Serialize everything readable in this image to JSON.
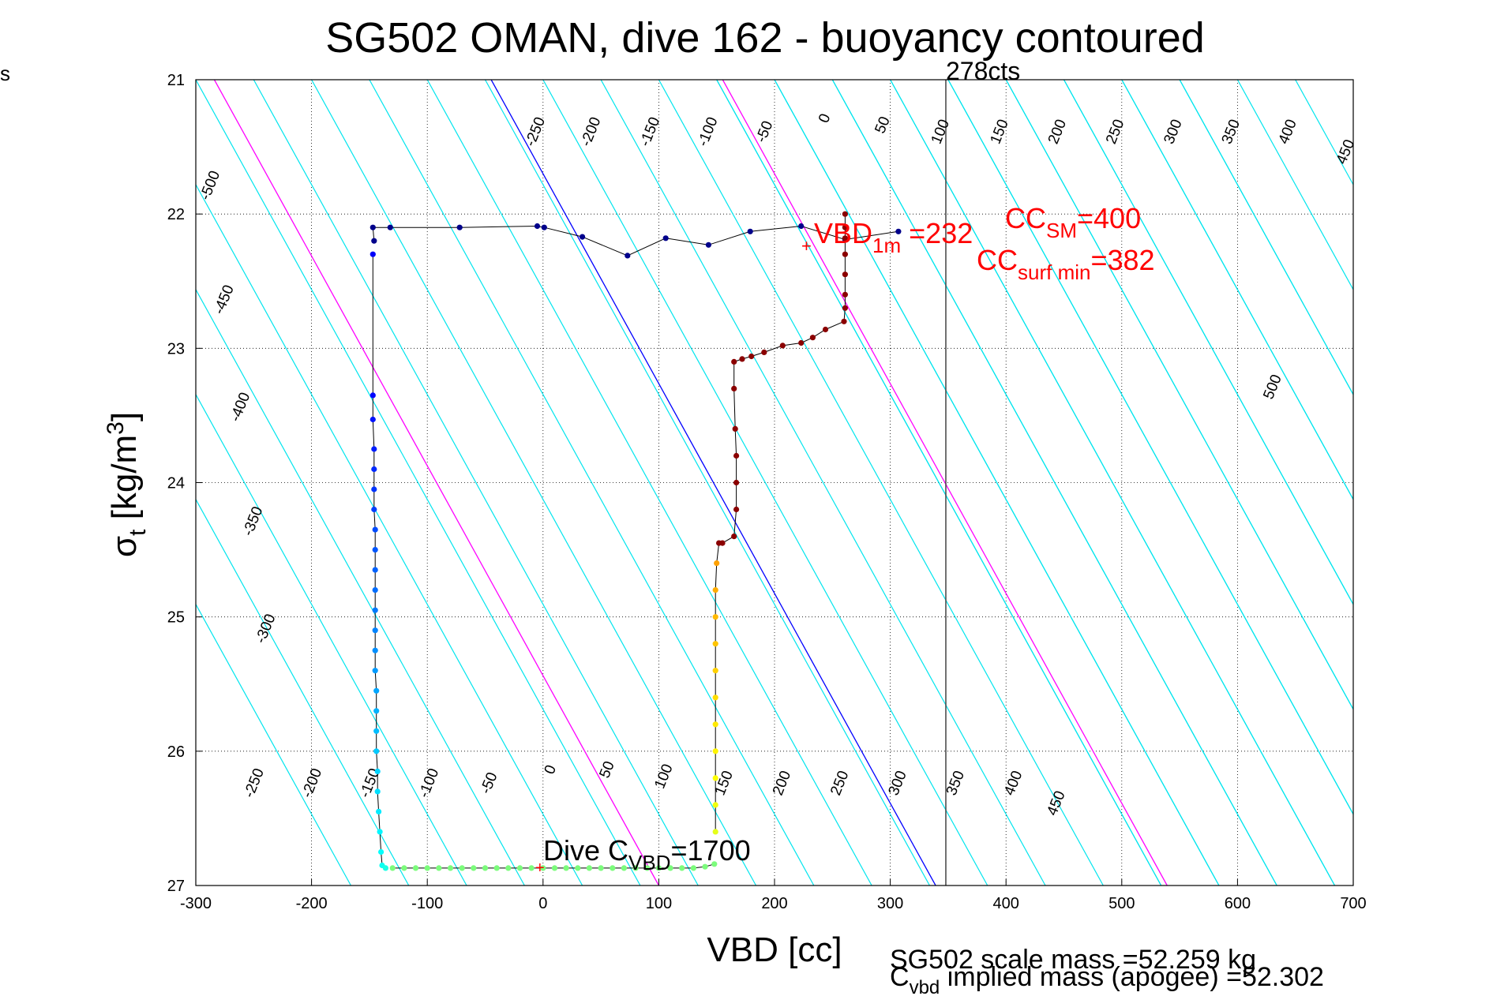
{
  "chart_data": {
    "type": "scatter",
    "title": "SG502 OMAN, dive 162 - buoyancy contoured",
    "xlabel": "VBD [cc]",
    "ylabel": {
      "main": "σ",
      "sub": "t",
      "unit": " [kg/m",
      "sup": "3",
      "close": "]"
    },
    "xlim": [
      -300,
      700
    ],
    "ylim": [
      21,
      27
    ],
    "y_reversed": true,
    "grid": true,
    "x_ticks": [
      -300,
      -200,
      -100,
      0,
      100,
      200,
      300,
      400,
      500,
      600,
      700
    ],
    "y_ticks": [
      21,
      22,
      23,
      24,
      25,
      26,
      27
    ],
    "left_margin_text": "s",
    "contours": {
      "x_shift_per_sigma": 64,
      "color": "#00e5ee",
      "start": -550,
      "end": 550,
      "step": 50,
      "top_labels": [
        {
          "v": -500,
          "x": -284,
          "y": 21.8
        },
        {
          "v": -450,
          "x": -272,
          "y": 22.65
        },
        {
          "v": -400,
          "x": -258,
          "y": 23.45
        },
        {
          "v": -350,
          "x": -247,
          "y": 24.3
        },
        {
          "v": -300,
          "x": -236,
          "y": 25.1
        },
        {
          "v": -250,
          "x": -3,
          "y": 21.4
        },
        {
          "v": -200,
          "x": 45,
          "y": 21.4
        },
        {
          "v": -150,
          "x": 96,
          "y": 21.4
        },
        {
          "v": -100,
          "x": 146,
          "y": 21.4
        },
        {
          "v": -50,
          "x": 195,
          "y": 21.4
        },
        {
          "v": 0,
          "x": 247,
          "y": 21.3
        },
        {
          "v": 50,
          "x": 297,
          "y": 21.35
        },
        {
          "v": 100,
          "x": 347,
          "y": 21.4
        },
        {
          "v": 150,
          "x": 398,
          "y": 21.4
        },
        {
          "v": 200,
          "x": 448,
          "y": 21.4
        },
        {
          "v": 250,
          "x": 498,
          "y": 21.4
        },
        {
          "v": 300,
          "x": 548,
          "y": 21.4
        },
        {
          "v": 350,
          "x": 598,
          "y": 21.4
        },
        {
          "v": 400,
          "x": 647,
          "y": 21.4
        },
        {
          "v": 450,
          "x": 697,
          "y": 21.55
        },
        {
          "v": 500,
          "x": 634,
          "y": 23.3
        }
      ],
      "bottom_labels": [
        {
          "v": -250,
          "x": -246,
          "y": 26.25
        },
        {
          "v": -200,
          "x": -196,
          "y": 26.25
        },
        {
          "v": -150,
          "x": -146,
          "y": 26.25
        },
        {
          "v": -100,
          "x": -95,
          "y": 26.25
        },
        {
          "v": -50,
          "x": -43,
          "y": 26.25
        },
        {
          "v": 0,
          "x": 10,
          "y": 26.15
        },
        {
          "v": 50,
          "x": 59,
          "y": 26.15
        },
        {
          "v": 100,
          "x": 108,
          "y": 26.2
        },
        {
          "v": 150,
          "x": 160,
          "y": 26.25
        },
        {
          "v": 200,
          "x": 210,
          "y": 26.25
        },
        {
          "v": 250,
          "x": 260,
          "y": 26.25
        },
        {
          "v": 300,
          "x": 310,
          "y": 26.25
        },
        {
          "v": 350,
          "x": 360,
          "y": 26.25
        },
        {
          "v": 400,
          "x": 410,
          "y": 26.25
        },
        {
          "v": 450,
          "x": 447,
          "y": 26.4
        }
      ]
    },
    "reference_lines": [
      {
        "type": "slanted",
        "x0": 0,
        "y0": 21.7,
        "slope_x_per_sigma": 64,
        "color": "#0000ff"
      },
      {
        "type": "slanted",
        "x0": 200,
        "y0": 21.7,
        "slope_x_per_sigma": 64,
        "color": "#ff00ff"
      },
      {
        "type": "slanted",
        "x0": 100,
        "y0": 27,
        "slope_x_per_sigma": 64,
        "color": "#ff00ff"
      },
      {
        "type": "vertical",
        "x": 348,
        "color": "#444444",
        "label": "278cts"
      }
    ],
    "series": [
      {
        "role": "surface track",
        "color": "#00008b",
        "points": [
          [
            -146,
            22.2
          ],
          [
            -147,
            22.1
          ],
          [
            -132,
            22.1
          ],
          [
            -72,
            22.1
          ],
          [
            -5,
            22.09
          ],
          [
            1,
            22.1
          ],
          [
            34,
            22.17
          ],
          [
            73,
            22.31
          ],
          [
            106,
            22.18
          ],
          [
            143,
            22.23
          ],
          [
            179,
            22.13
          ],
          [
            223,
            22.09
          ],
          [
            261,
            22.19
          ],
          [
            307,
            22.13
          ]
        ]
      },
      {
        "role": "descent",
        "color": "gradient",
        "points": [
          [
            -147,
            22.3
          ],
          [
            -147,
            23.35
          ],
          [
            -147,
            23.53
          ],
          [
            -146,
            23.75
          ],
          [
            -146,
            23.9
          ],
          [
            -146,
            24.05
          ],
          [
            -146,
            24.2
          ],
          [
            -145,
            24.35
          ],
          [
            -145,
            24.5
          ],
          [
            -145,
            24.65
          ],
          [
            -145,
            24.8
          ],
          [
            -145,
            24.95
          ],
          [
            -145,
            25.1
          ],
          [
            -145,
            25.25
          ],
          [
            -145,
            25.4
          ],
          [
            -144,
            25.55
          ],
          [
            -144,
            25.7
          ],
          [
            -144,
            25.85
          ],
          [
            -144,
            26.0
          ],
          [
            -143,
            26.15
          ],
          [
            -143,
            26.3
          ],
          [
            -142,
            26.45
          ],
          [
            -141,
            26.6
          ],
          [
            -140,
            26.75
          ],
          [
            -139,
            26.85
          ],
          [
            -136,
            26.87
          ]
        ]
      },
      {
        "role": "bottom",
        "color": "#7cfc7c",
        "points": [
          [
            -130,
            26.87
          ],
          [
            -120,
            26.87
          ],
          [
            -110,
            26.87
          ],
          [
            -100,
            26.87
          ],
          [
            -90,
            26.87
          ],
          [
            -80,
            26.87
          ],
          [
            -70,
            26.87
          ],
          [
            -60,
            26.87
          ],
          [
            -50,
            26.87
          ],
          [
            -40,
            26.87
          ],
          [
            -30,
            26.87
          ],
          [
            -20,
            26.87
          ],
          [
            -10,
            26.87
          ],
          [
            0,
            26.87
          ],
          [
            10,
            26.87
          ],
          [
            20,
            26.87
          ],
          [
            30,
            26.87
          ],
          [
            40,
            26.87
          ],
          [
            50,
            26.87
          ],
          [
            60,
            26.87
          ],
          [
            70,
            26.87
          ],
          [
            80,
            26.87
          ],
          [
            90,
            26.87
          ],
          [
            100,
            26.87
          ],
          [
            110,
            26.87
          ],
          [
            120,
            26.87
          ],
          [
            130,
            26.87
          ],
          [
            140,
            26.86
          ],
          [
            148,
            26.84
          ]
        ]
      },
      {
        "role": "ascent",
        "color": "gradient",
        "points": [
          [
            149,
            26.6
          ],
          [
            149,
            26.4
          ],
          [
            149,
            26.2
          ],
          [
            149,
            26.0
          ],
          [
            149,
            25.8
          ],
          [
            149,
            25.6
          ],
          [
            149,
            25.4
          ],
          [
            149,
            25.2
          ],
          [
            149,
            25.0
          ],
          [
            149,
            24.8
          ],
          [
            150,
            24.6
          ],
          [
            152,
            24.45
          ],
          [
            155,
            24.45
          ],
          [
            165,
            24.4
          ],
          [
            167,
            24.2
          ],
          [
            167,
            24.0
          ],
          [
            167,
            23.8
          ],
          [
            166,
            23.6
          ],
          [
            165,
            23.3
          ],
          [
            165,
            23.1
          ],
          [
            172,
            23.08
          ],
          [
            180,
            23.06
          ],
          [
            191,
            23.03
          ],
          [
            207,
            22.98
          ],
          [
            223,
            22.96
          ],
          [
            233,
            22.92
          ],
          [
            244,
            22.86
          ],
          [
            260,
            22.8
          ],
          [
            261,
            22.7
          ],
          [
            261,
            22.6
          ],
          [
            261,
            22.45
          ],
          [
            261,
            22.3
          ],
          [
            261,
            22.18
          ],
          [
            261,
            22.1
          ],
          [
            261,
            22.0
          ]
        ]
      }
    ],
    "annotations": {
      "vbd_label": "VBD",
      "vbd_sub": "1m",
      "vbd_val": " =232",
      "ccsm_label": "CC",
      "ccsm_sub": "SM",
      "ccsm_val": "=400",
      "ccsurf_label": "CC",
      "ccsurf_sub": "surf min",
      "ccsurf_val": "=382",
      "dive_label": "Dive C",
      "dive_sub": "VBD",
      "dive_val": "=1700",
      "cts_label": "278cts",
      "footer_line1": "SG502 scale mass =52.259 kg",
      "footer_c": "C",
      "footer_c_sub": "vbd",
      "footer_line2": " implied mass (apogee) =52.302",
      "color": "#ff0000"
    }
  }
}
